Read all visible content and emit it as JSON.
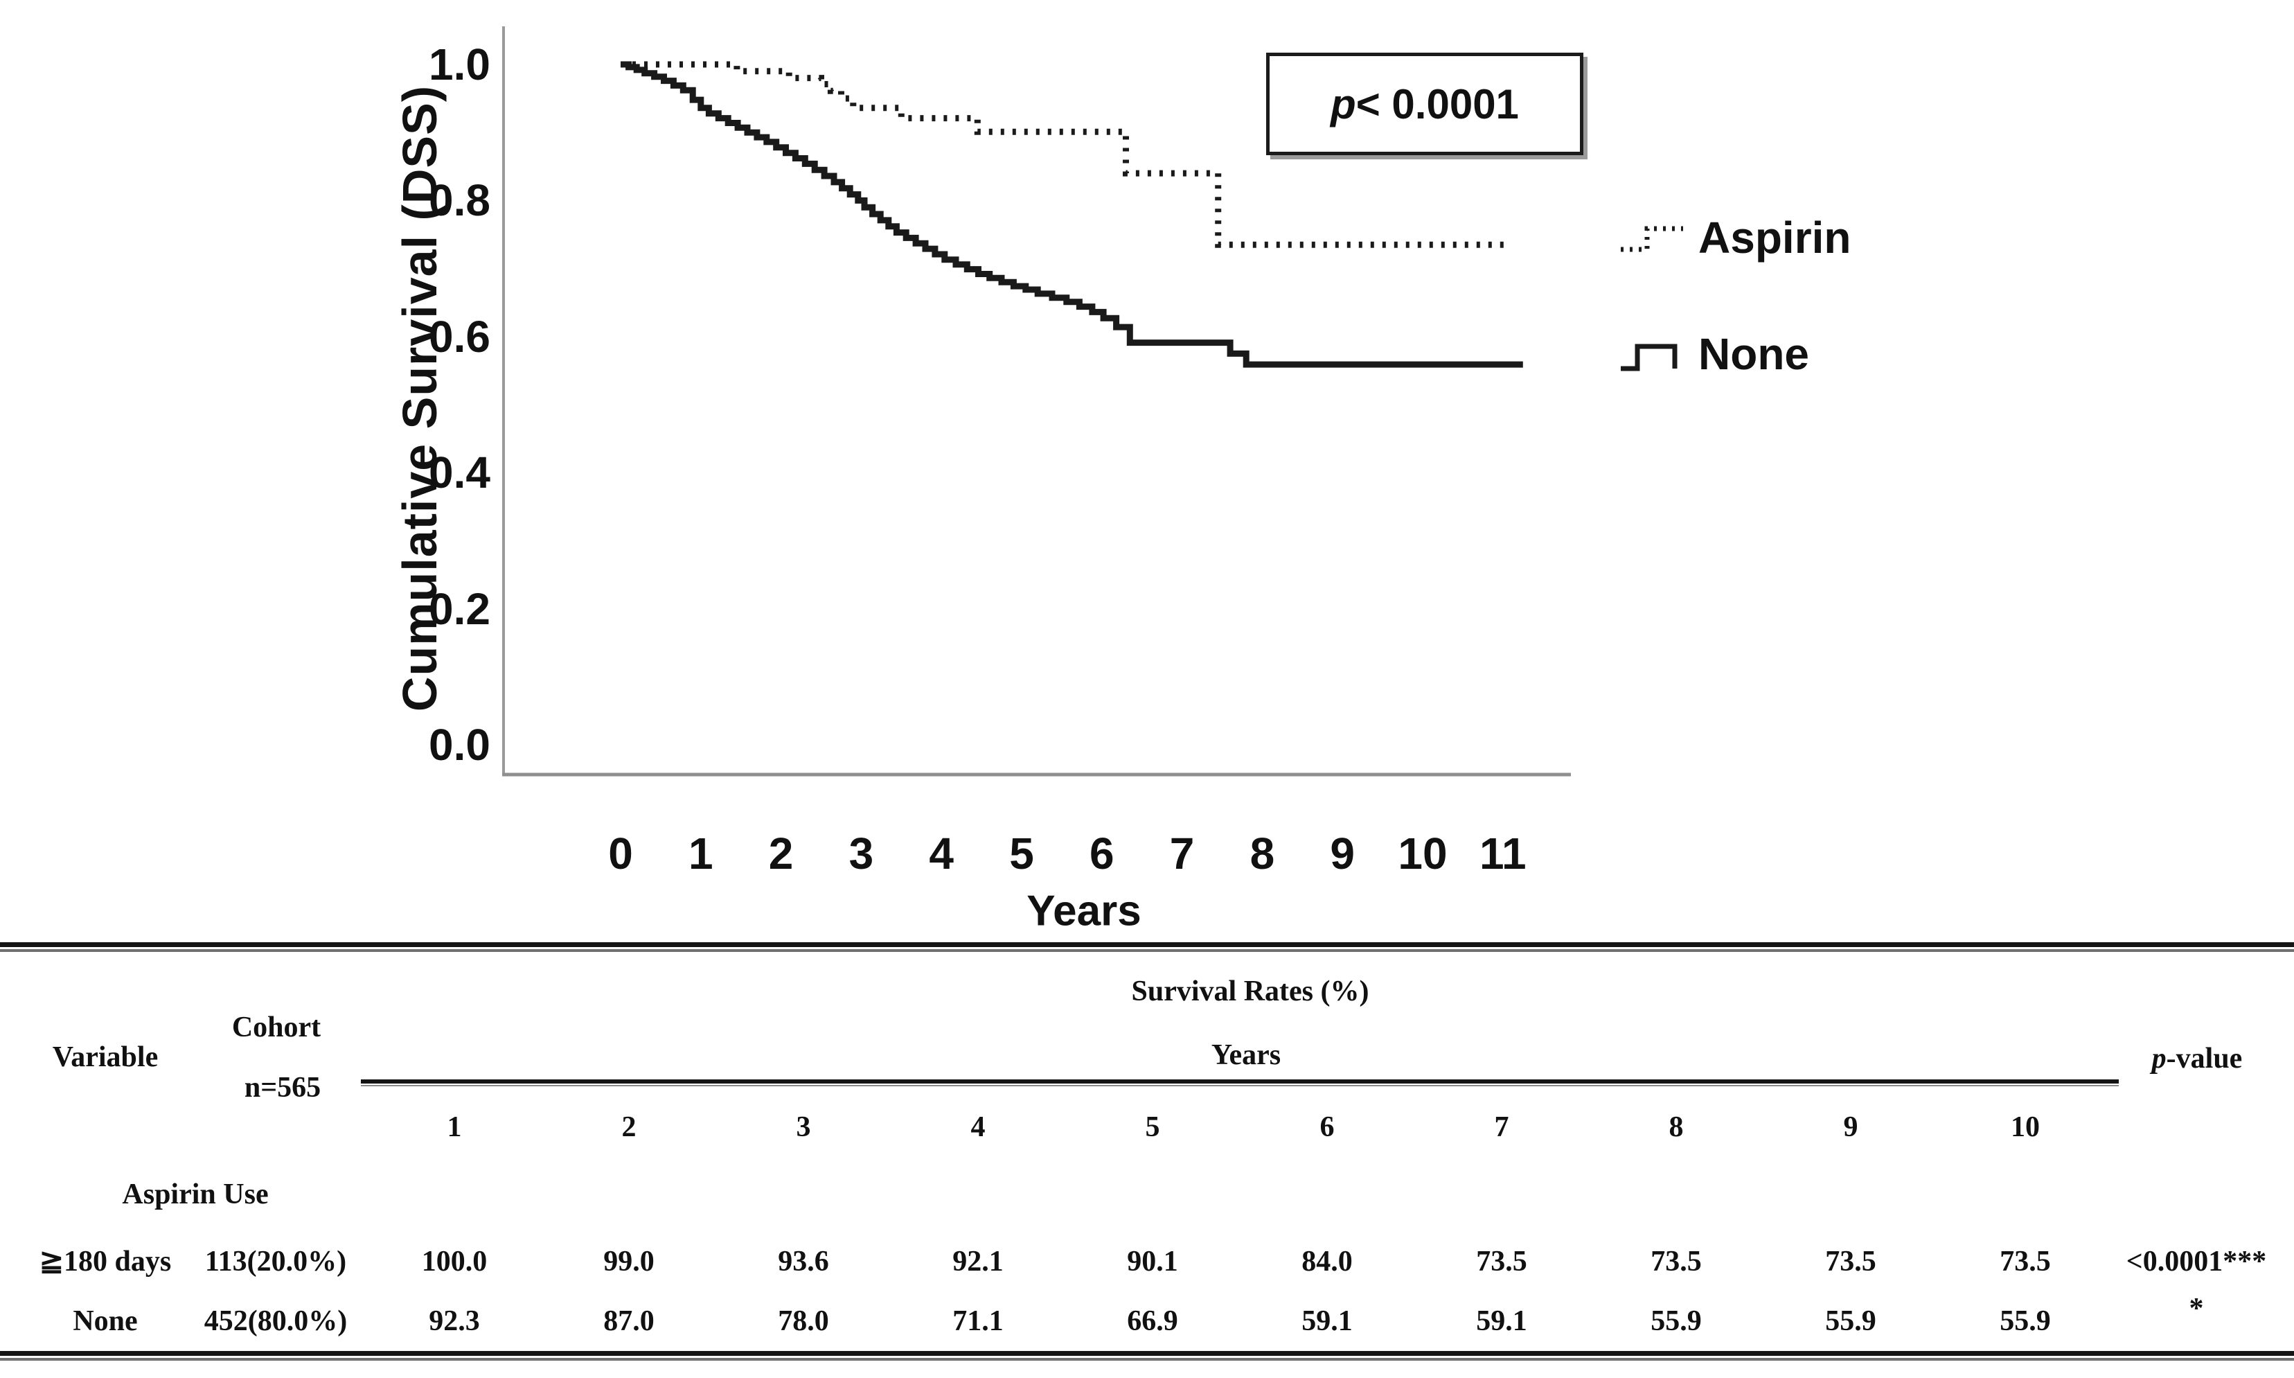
{
  "chart": {
    "ylabel": "Cumulative Survival (DSS)",
    "xlabel": "Years",
    "y_ticks": [
      "1.0",
      "0.8",
      "0.6",
      "0.4",
      "0.2",
      "0.0"
    ],
    "x_ticks": [
      "0",
      "1",
      "2",
      "3",
      "4",
      "5",
      "6",
      "7",
      "8",
      "9",
      "10",
      "11"
    ],
    "p_annotation": {
      "prefix": "p",
      "rest": " < 0.0001"
    },
    "legend": [
      {
        "label": "Aspirin",
        "style": "dotted"
      },
      {
        "label": "None",
        "style": "solid"
      }
    ],
    "line_color": "#1a1a1a",
    "axis_color": "#9a9a9a"
  },
  "chart_data": {
    "type": "line",
    "subtype": "kaplan-meier-step",
    "title": "",
    "xlabel": "Years",
    "ylabel": "Cumulative Survival (DSS)",
    "xlim": [
      0,
      11.6
    ],
    "ylim": [
      0,
      1.0
    ],
    "x_ticks": [
      0,
      1,
      2,
      3,
      4,
      5,
      6,
      7,
      8,
      9,
      10,
      11
    ],
    "y_ticks": [
      1.0,
      0.8,
      0.6,
      0.4,
      0.2,
      0.0
    ],
    "grid": false,
    "legend_position": "right",
    "annotation": "p < 0.0001",
    "rate_years": [
      1,
      2,
      3,
      4,
      5,
      6,
      7,
      8,
      9,
      10
    ],
    "series": [
      {
        "name": "Aspirin",
        "line_style": "dotted",
        "survival_rates_percent_by_year": [
          100.0,
          99.0,
          93.6,
          92.1,
          90.1,
          84.0,
          73.5,
          73.5,
          73.5,
          73.5
        ],
        "step_points": [
          [
            0,
            1.0
          ],
          [
            1.45,
            0.99
          ],
          [
            2.1,
            0.98
          ],
          [
            2.5,
            0.971
          ],
          [
            2.62,
            0.961
          ],
          [
            2.75,
            0.95
          ],
          [
            2.9,
            0.936
          ],
          [
            3.5,
            0.921
          ],
          [
            4.45,
            0.901
          ],
          [
            6.3,
            0.84
          ],
          [
            7.45,
            0.735
          ]
        ],
        "end_x": 11.05
      },
      {
        "name": "None",
        "line_style": "solid",
        "survival_rates_percent_by_year": [
          92.3,
          87.0,
          78.0,
          71.1,
          66.9,
          59.1,
          59.1,
          55.9,
          55.9,
          55.9
        ],
        "step_points": [
          [
            0,
            1.0
          ],
          [
            0.1,
            0.996
          ],
          [
            0.2,
            0.992
          ],
          [
            0.3,
            0.987
          ],
          [
            0.42,
            0.982
          ],
          [
            0.54,
            0.976
          ],
          [
            0.66,
            0.969
          ],
          [
            0.78,
            0.962
          ],
          [
            0.9,
            0.948
          ],
          [
            1.0,
            0.936
          ],
          [
            1.1,
            0.928
          ],
          [
            1.22,
            0.921
          ],
          [
            1.34,
            0.914
          ],
          [
            1.46,
            0.907
          ],
          [
            1.58,
            0.9
          ],
          [
            1.7,
            0.893
          ],
          [
            1.82,
            0.886
          ],
          [
            1.94,
            0.878
          ],
          [
            2.06,
            0.87
          ],
          [
            2.18,
            0.862
          ],
          [
            2.3,
            0.854
          ],
          [
            2.42,
            0.845
          ],
          [
            2.54,
            0.836
          ],
          [
            2.66,
            0.827
          ],
          [
            2.76,
            0.818
          ],
          [
            2.86,
            0.809
          ],
          [
            2.96,
            0.8
          ],
          [
            3.04,
            0.79
          ],
          [
            3.14,
            0.78
          ],
          [
            3.24,
            0.771
          ],
          [
            3.34,
            0.762
          ],
          [
            3.44,
            0.753
          ],
          [
            3.56,
            0.745
          ],
          [
            3.68,
            0.737
          ],
          [
            3.8,
            0.729
          ],
          [
            3.92,
            0.721
          ],
          [
            4.04,
            0.713
          ],
          [
            4.18,
            0.706
          ],
          [
            4.32,
            0.699
          ],
          [
            4.46,
            0.692
          ],
          [
            4.6,
            0.686
          ],
          [
            4.75,
            0.68
          ],
          [
            4.9,
            0.674
          ],
          [
            5.05,
            0.669
          ],
          [
            5.2,
            0.663
          ],
          [
            5.38,
            0.657
          ],
          [
            5.56,
            0.651
          ],
          [
            5.72,
            0.644
          ],
          [
            5.88,
            0.636
          ],
          [
            6.02,
            0.627
          ],
          [
            6.18,
            0.614
          ],
          [
            6.35,
            0.591
          ],
          [
            7.6,
            0.575
          ],
          [
            7.8,
            0.559
          ]
        ],
        "end_x": 11.25
      }
    ]
  },
  "table": {
    "headers": {
      "variable": "Variable",
      "cohort_line1": "Cohort",
      "cohort_line2": "n=565",
      "group": "Survival Rates (%)",
      "group_sub": "Years",
      "pvalue_prefix": "p",
      "pvalue_rest": "-value",
      "years": [
        "1",
        "2",
        "3",
        "4",
        "5",
        "6",
        "7",
        "8",
        "9",
        "10"
      ]
    },
    "section_label": "Aspirin Use",
    "rows": [
      {
        "variable": "≧180 days",
        "cohort": "113(20.0%)",
        "values": [
          "100.0",
          "99.0",
          "93.6",
          "92.1",
          "90.1",
          "84.0",
          "73.5",
          "73.5",
          "73.5",
          "73.5"
        ],
        "p": "<0.0001***"
      },
      {
        "variable": "None",
        "cohort": "452(80.0%)",
        "values": [
          "92.3",
          "87.0",
          "78.0",
          "71.1",
          "66.9",
          "59.1",
          "59.1",
          "55.9",
          "55.9",
          "55.9"
        ],
        "p": "*"
      }
    ]
  }
}
